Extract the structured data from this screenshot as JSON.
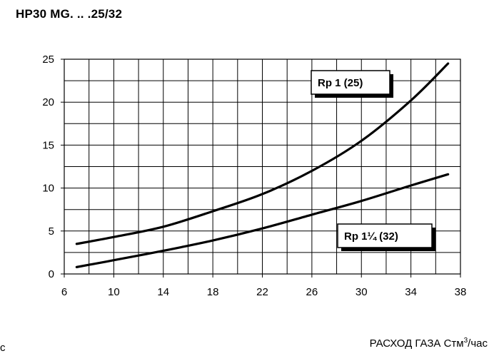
{
  "title": "HP30 MG. .. .25/32",
  "left_edge_text": "c",
  "x_axis_label": {
    "text": "РАСХОД ГАЗА Стм",
    "sup": "3",
    "suffix": "/час"
  },
  "chart_data": {
    "type": "line",
    "xlim": [
      6,
      38
    ],
    "ylim": [
      0,
      25
    ],
    "x_ticks": [
      6,
      10,
      14,
      18,
      22,
      26,
      30,
      34,
      38
    ],
    "y_ticks": [
      0,
      5,
      10,
      15,
      20,
      25
    ],
    "grid": true,
    "series": [
      {
        "name": "Rp 1 (25)",
        "color": "#000000",
        "x": [
          7,
          10,
          14,
          18,
          22,
          26,
          30,
          34,
          37
        ],
        "y": [
          3.5,
          4.3,
          5.5,
          7.3,
          9.3,
          12.0,
          15.5,
          20.2,
          24.5
        ]
      },
      {
        "name": "Rp 1¼ (32)",
        "color": "#000000",
        "x": [
          7,
          10,
          14,
          18,
          22,
          26,
          30,
          34,
          37
        ],
        "y": [
          0.8,
          1.6,
          2.7,
          3.9,
          5.3,
          6.9,
          8.5,
          10.3,
          11.6
        ]
      }
    ]
  }
}
